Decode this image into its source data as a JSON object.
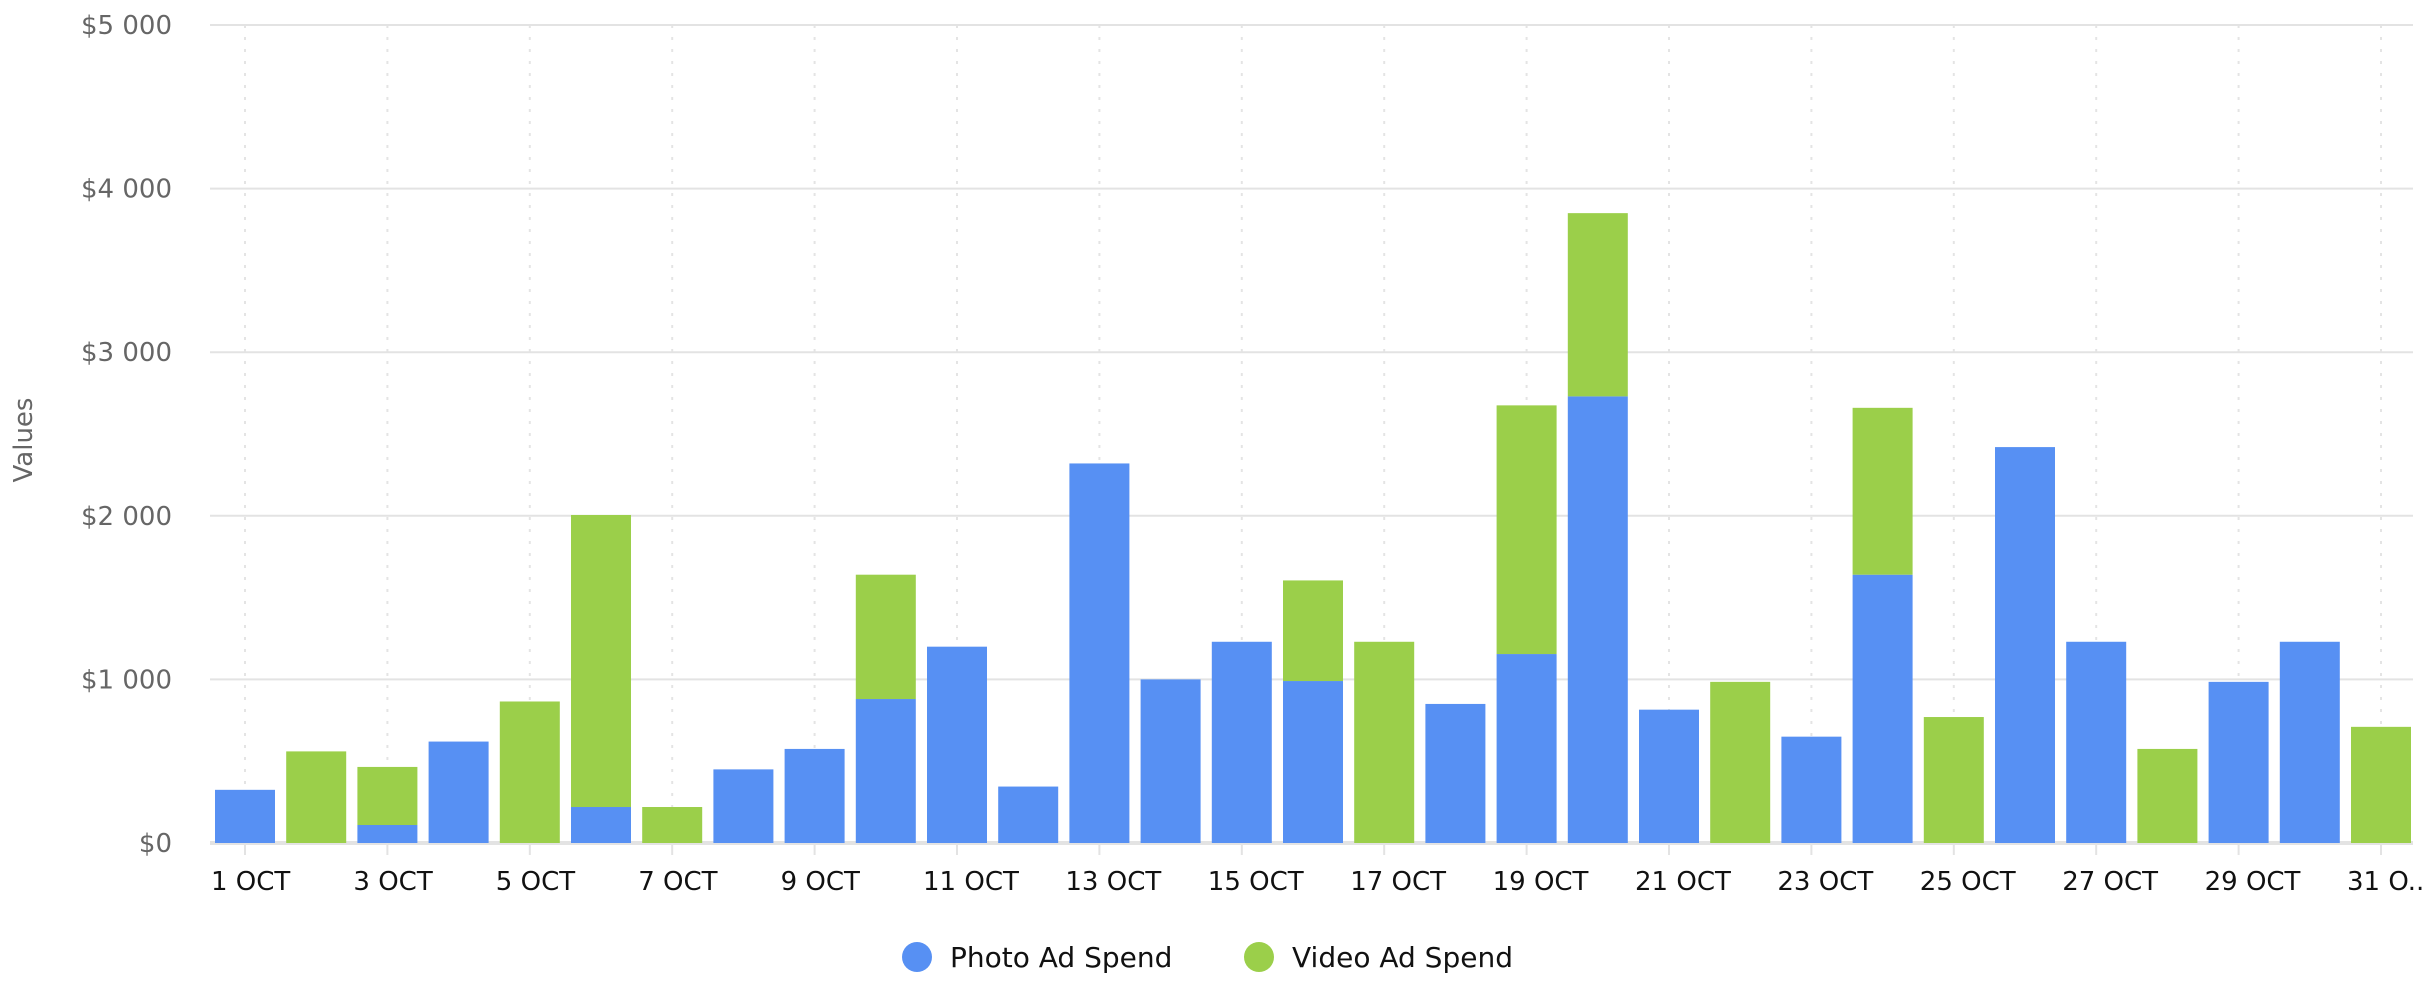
{
  "chart_data": {
    "type": "bar",
    "stacked": true,
    "title": "",
    "xlabel": "",
    "ylabel": "Values",
    "ylim": [
      0,
      5000
    ],
    "yticks": [
      "$0",
      "$1 000",
      "$2 000",
      "$3 000",
      "$4 000",
      "$5 000"
    ],
    "ytick_values": [
      0,
      1000,
      2000,
      3000,
      4000,
      5000
    ],
    "xtick_labels": [
      "1 OCT",
      "3 OCT",
      "5 OCT",
      "7 OCT",
      "9 OCT",
      "11 OCT",
      "13 OCT",
      "15 OCT",
      "17 OCT",
      "19 OCT",
      "21 OCT",
      "23 OCT",
      "25 OCT",
      "27 OCT",
      "29 OCT",
      "31 O..."
    ],
    "categories": [
      "1 OCT",
      "2 OCT",
      "3 OCT",
      "4 OCT",
      "5 OCT",
      "6 OCT",
      "7 OCT",
      "8 OCT",
      "9 OCT",
      "10 OCT",
      "11 OCT",
      "12 OCT",
      "13 OCT",
      "14 OCT",
      "15 OCT",
      "16 OCT",
      "17 OCT",
      "18 OCT",
      "19 OCT",
      "20 OCT",
      "21 OCT",
      "22 OCT",
      "23 OCT",
      "24 OCT",
      "25 OCT",
      "26 OCT",
      "27 OCT",
      "28 OCT",
      "29 OCT",
      "30 OCT",
      "31 OCT"
    ],
    "series": [
      {
        "name": "Photo Ad Spend",
        "color": "#5790f3",
        "values": [
          325,
          0,
          110,
          620,
          0,
          220,
          0,
          450,
          575,
          880,
          1200,
          345,
          2320,
          1000,
          1230,
          990,
          0,
          850,
          1155,
          2730,
          815,
          0,
          650,
          1640,
          0,
          2420,
          1230,
          0,
          985,
          1230,
          0
        ]
      },
      {
        "name": "Video Ad Spend",
        "color": "#9bcf4a",
        "values": [
          0,
          560,
          355,
          0,
          865,
          1785,
          220,
          0,
          0,
          760,
          0,
          0,
          0,
          0,
          0,
          615,
          1230,
          0,
          1520,
          1120,
          0,
          985,
          0,
          1020,
          770,
          0,
          0,
          575,
          0,
          0,
          710
        ]
      }
    ],
    "grid": true,
    "legend_position": "bottom-center"
  }
}
